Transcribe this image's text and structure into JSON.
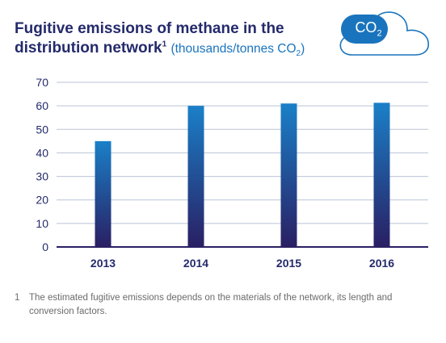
{
  "header": {
    "title_main": "Fugitive emissions of methane in the distribution network",
    "title_sup": "1",
    "unit_prefix": "(thousands/tonnes CO",
    "unit_sub": "2",
    "unit_suffix": ")"
  },
  "badge": {
    "icon": "cloud-icon",
    "label_main": "CO",
    "label_sub": "2",
    "color": "#1a74bd"
  },
  "footnote": {
    "number": "1",
    "text": "The estimated fugitive emissions depends on the materials of the network, its length and conversion factors."
  },
  "colors": {
    "bar_top": "#1a80c8",
    "bar_bottom": "#2a1f63",
    "axis": "#2a1f63",
    "grid": "#b9c3d6",
    "tick_text": "#242a6b"
  },
  "chart_data": {
    "type": "bar",
    "categories": [
      "2013",
      "2014",
      "2015",
      "2016"
    ],
    "values": [
      45,
      60,
      61,
      61.3
    ],
    "yticks": [
      0,
      10,
      20,
      30,
      40,
      50,
      60,
      70
    ],
    "ylim": [
      0,
      70
    ],
    "grid": true
  }
}
